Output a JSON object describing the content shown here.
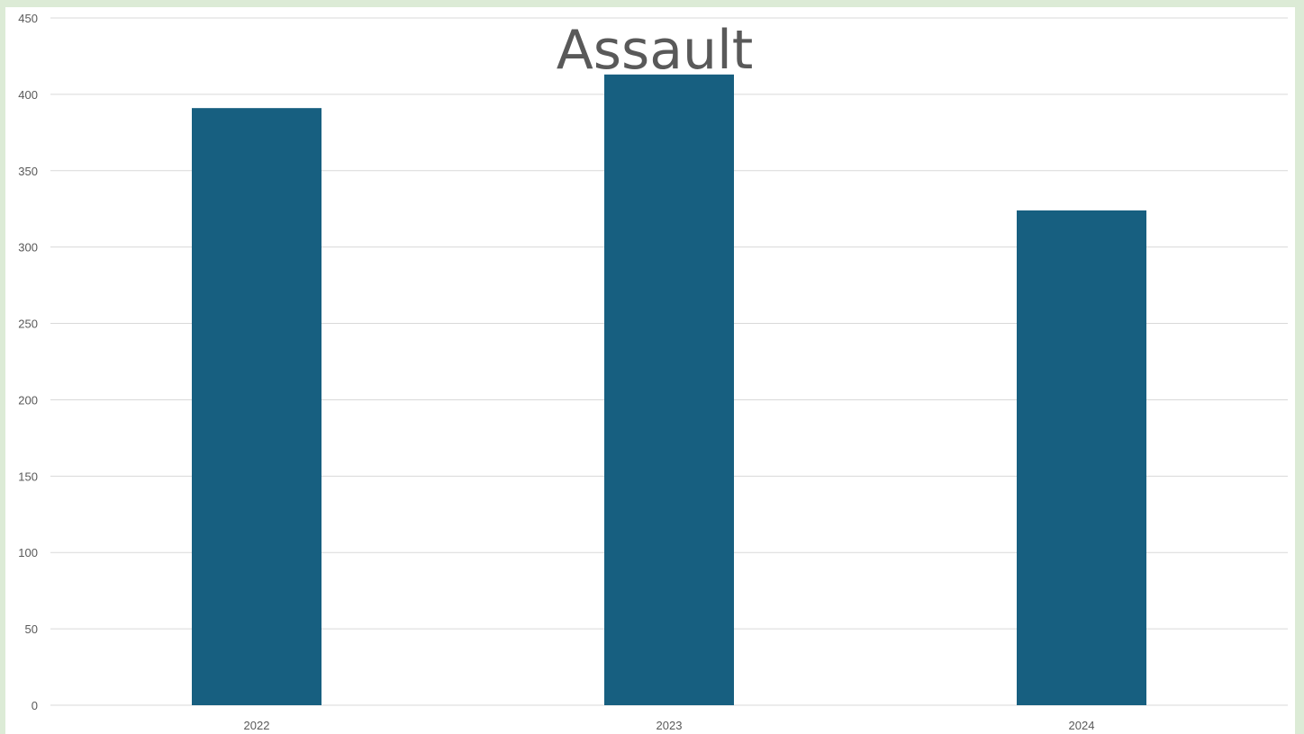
{
  "chart_data": {
    "type": "bar",
    "title": "Assault",
    "xlabel": "",
    "ylabel": "",
    "categories": [
      "2022",
      "2023",
      "2024"
    ],
    "values": [
      391,
      413,
      324
    ],
    "ylim": [
      0,
      450
    ],
    "yticks": [
      0,
      50,
      100,
      150,
      200,
      250,
      300,
      350,
      400,
      450
    ],
    "grid": true,
    "legend": "none",
    "colors": {
      "bar": "#175f80",
      "grid": "#d9d9d9",
      "text": "#595959",
      "background": "#ffffff",
      "border": "#dcebd6"
    }
  }
}
